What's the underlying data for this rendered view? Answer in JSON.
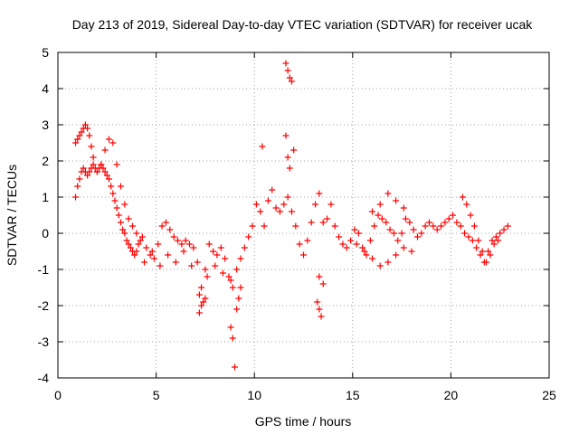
{
  "chart_data": {
    "type": "scatter",
    "title": "Day 213 of 2019, Sidereal Day-to-day VTEC variation (SDTVAR) for receiver ucak",
    "xlabel": "GPS time / hours",
    "ylabel": "SDTVAR / TECUs",
    "xlim": [
      0,
      25
    ],
    "ylim": [
      -4,
      5
    ],
    "xticks": [
      0,
      5,
      10,
      15,
      20,
      25
    ],
    "yticks": [
      -4,
      -3,
      -2,
      -1,
      0,
      1,
      2,
      3,
      4,
      5
    ],
    "xtick_labels": [
      "0",
      "5",
      "10",
      "15",
      "20",
      "25"
    ],
    "ytick_labels": [
      "-4",
      "-3",
      "-2",
      "-1",
      "0",
      "1",
      "2",
      "3",
      "4",
      "5"
    ],
    "grid": true,
    "marker": "+",
    "series": [
      {
        "name": "SDTVAR",
        "color": "#ff0000",
        "x": [
          0.9,
          1.0,
          1.1,
          1.2,
          1.3,
          1.4,
          1.5,
          1.6,
          1.7,
          1.8,
          1.9,
          2.0,
          2.1,
          2.2,
          2.3,
          2.4,
          2.5,
          2.6,
          2.7,
          2.8,
          2.9,
          3.0,
          3.1,
          3.2,
          3.3,
          3.4,
          3.5,
          3.6,
          3.7,
          3.8,
          3.9,
          4.0,
          4.1,
          4.2,
          4.3,
          4.5,
          4.7,
          4.9,
          5.1,
          5.3,
          5.5,
          5.7,
          5.9,
          6.1,
          6.3,
          6.5,
          6.7,
          6.9,
          7.1,
          7.3,
          7.5,
          7.7,
          7.9,
          8.1,
          8.3,
          8.5,
          8.7,
          8.9,
          9.1,
          9.3,
          9.5,
          9.7,
          9.9,
          10.1,
          10.3,
          10.5,
          10.7,
          10.9,
          11.1,
          11.3,
          11.5,
          11.7,
          11.9,
          12.1,
          12.3,
          12.5,
          12.7,
          12.9,
          13.1,
          13.3,
          13.5,
          13.7,
          13.9,
          14.1,
          14.3,
          14.5,
          14.7,
          14.9,
          15.1,
          15.3,
          15.5,
          15.7,
          15.9,
          16.1,
          16.3,
          16.5,
          16.7,
          16.9,
          17.1,
          17.3,
          17.5,
          17.7,
          17.9,
          18.1,
          18.3,
          18.5,
          18.7,
          18.9,
          19.1,
          19.3,
          19.5,
          19.7,
          19.9,
          20.1,
          20.3,
          20.5,
          20.7,
          20.9,
          21.1,
          21.3,
          21.5,
          21.7,
          21.9,
          22.1,
          22.3,
          22.5,
          22.7,
          22.9,
          0.9,
          1.0,
          1.1,
          1.2,
          1.3,
          1.4,
          1.5,
          1.6,
          1.7,
          1.8,
          2.0,
          2.2,
          2.4,
          2.6,
          2.8,
          3.0,
          3.2,
          3.4,
          3.6,
          3.8,
          4.0,
          4.4,
          4.8,
          5.2,
          5.6,
          6.0,
          6.4,
          6.8,
          7.2,
          7.6,
          8.0,
          8.4,
          8.8,
          7.2,
          7.3,
          7.4,
          7.5,
          8.8,
          8.9,
          9.0,
          9.1,
          9.2,
          9.3,
          10.4,
          11.6,
          11.7,
          11.8,
          11.9,
          11.6,
          11.7,
          11.8,
          12.0,
          13.3,
          13.4,
          13.2,
          13.5,
          13.3,
          15.2,
          15.6,
          16.0,
          16.4,
          16.8,
          17.2,
          17.6,
          18.0,
          16.0,
          16.4,
          16.8,
          17.2,
          17.6,
          20.6,
          20.8,
          21.0,
          21.2,
          21.4,
          21.6,
          21.8,
          22.0,
          22.2,
          22.4
        ],
        "y": [
          1.0,
          1.3,
          1.5,
          1.7,
          1.8,
          1.7,
          1.6,
          1.7,
          1.8,
          1.9,
          1.8,
          1.7,
          1.8,
          1.9,
          1.8,
          1.7,
          1.6,
          1.5,
          1.3,
          1.1,
          0.9,
          0.7,
          0.5,
          0.3,
          0.1,
          0.0,
          -0.2,
          -0.3,
          -0.4,
          -0.5,
          -0.6,
          -0.5,
          -0.3,
          -0.2,
          -0.1,
          -0.4,
          -0.6,
          -0.7,
          -0.3,
          0.2,
          0.3,
          0.1,
          -0.1,
          -0.2,
          -0.3,
          -0.2,
          -0.3,
          -0.4,
          -0.8,
          -1.5,
          -1.0,
          -0.3,
          -0.5,
          -0.6,
          -0.4,
          -0.7,
          -1.2,
          -1.5,
          -1.0,
          -0.7,
          -0.4,
          -0.1,
          0.2,
          0.8,
          0.6,
          0.2,
          0.9,
          1.2,
          0.7,
          0.6,
          0.8,
          1.0,
          0.6,
          0.2,
          -0.3,
          -0.6,
          -0.2,
          0.3,
          0.8,
          1.1,
          0.3,
          0.4,
          0.8,
          0.2,
          -0.1,
          -0.3,
          -0.4,
          -0.2,
          0.1,
          0.0,
          -0.4,
          -0.6,
          -0.2,
          0.2,
          0.5,
          0.4,
          0.3,
          0.1,
          0.0,
          -0.2,
          0.0,
          0.4,
          0.3,
          0.1,
          -0.1,
          0.0,
          0.2,
          0.3,
          0.2,
          0.1,
          0.2,
          0.3,
          0.4,
          0.5,
          0.3,
          0.2,
          0.0,
          -0.1,
          -0.2,
          -0.4,
          -0.6,
          -0.8,
          -0.5,
          -0.2,
          -0.1,
          0.0,
          0.1,
          0.2,
          2.5,
          2.6,
          2.7,
          2.8,
          2.9,
          3.0,
          2.9,
          2.7,
          2.4,
          2.1,
          1.7,
          1.9,
          2.3,
          2.6,
          2.5,
          1.9,
          1.3,
          0.8,
          0.4,
          0.2,
          0.0,
          -0.8,
          -0.5,
          -0.9,
          -0.6,
          -0.8,
          -0.5,
          -0.9,
          -1.7,
          -1.2,
          -0.9,
          -1.1,
          -1.3,
          -2.2,
          -2.0,
          -1.9,
          -1.8,
          -2.6,
          -2.9,
          -3.7,
          -2.1,
          -1.8,
          -1.5,
          2.4,
          4.7,
          4.5,
          4.3,
          4.2,
          2.7,
          2.1,
          1.8,
          2.3,
          -2.1,
          -2.3,
          -1.9,
          -1.4,
          -1.2,
          -0.3,
          -0.5,
          -0.7,
          -0.9,
          -0.8,
          -0.6,
          -0.4,
          -0.5,
          0.6,
          0.8,
          1.1,
          0.9,
          0.7,
          1.0,
          0.8,
          0.5,
          0.2,
          -0.2,
          -0.5,
          -0.8,
          -0.6,
          -0.3,
          -0.2
        ]
      }
    ]
  }
}
